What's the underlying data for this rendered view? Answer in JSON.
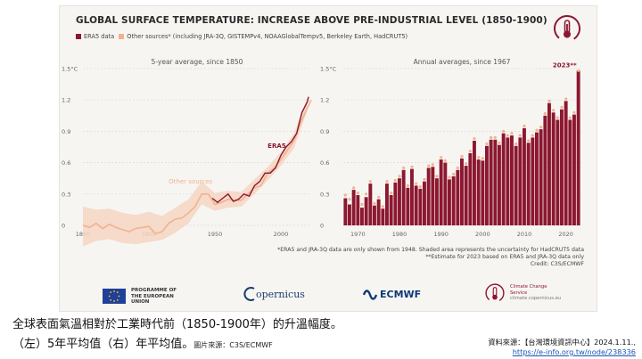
{
  "infographic": {
    "title": "GLOBAL SURFACE TEMPERATURE: INCREASE ABOVE PRE-INDUSTRIAL LEVEL (1850-1900)",
    "legend": [
      {
        "label": "ERA5 data",
        "color": "#8c1730"
      },
      {
        "label": "Other sources* (including JRA-3Q, GISTEMPv4, NOAAGlobalTempv5, Berkeley Earth, HadCRUT5)",
        "color": "#f0b38f"
      }
    ],
    "notes": [
      "*ERA5 and JRA-3Q data are only shown from 1948. Shaded area represents the uncertainty for HadCRUT5 data",
      "**Estimate for 2023 based on ERA5 and JRA-3Q data only",
      "Credit: C3S/ECMWF"
    ],
    "logos": {
      "eu": "PROGRAMME OF THE EUROPEAN UNION",
      "copernicus": "opernicus",
      "ecmwf": "ECMWF",
      "c3s": "Climate Change Service",
      "c3s_url": "climate.copernicus.eu"
    }
  },
  "caption": {
    "line1": "全球表面氣溫相對於工業時代前（1850-1900年）的升溫幅度。",
    "line2": "（左）5年平均值（右）年平均值。",
    "image_credit": "圖片來源：C3S/ECMWF",
    "source_label": "資料來源：【台灣環境資訊中心】2024.1.11.,",
    "source_url": "https://e-info.org.tw/node/238336"
  },
  "colors": {
    "era5": "#8c1730",
    "other": "#f0b38f",
    "band": "#f6d5c3",
    "grid": "#dedad5"
  },
  "chart_data": [
    {
      "type": "line",
      "title": "5-year average, since 1850",
      "ylabel": "°C",
      "xlim": [
        1850,
        2023
      ],
      "ylim": [
        0,
        1.5
      ],
      "yticks": [
        0,
        0.3,
        0.6,
        0.9,
        1.2,
        1.5
      ],
      "ytick_labels": [
        "0",
        "0.3",
        "0.6",
        "0.9",
        "1.2",
        "1.5°C"
      ],
      "xticks": [
        1850,
        1900,
        1950,
        2000
      ],
      "annotations": [
        "ERA5",
        "Other sources"
      ],
      "uncertainty_band_years": [
        1850,
        1860,
        1870,
        1880,
        1890,
        1900,
        1910,
        1920,
        1930,
        1940,
        1950,
        1960,
        1970,
        1980,
        1990,
        2000,
        2010,
        2020
      ],
      "uncertainty_band_lower": [
        -0.2,
        -0.15,
        -0.13,
        -0.17,
        -0.18,
        -0.16,
        -0.14,
        -0.07,
        0.02,
        0.2,
        0.14,
        0.17,
        0.18,
        0.3,
        0.43,
        0.57,
        0.74,
        1.1
      ],
      "uncertainty_band_upper": [
        0.18,
        0.15,
        0.16,
        0.12,
        0.1,
        0.13,
        0.09,
        0.17,
        0.25,
        0.42,
        0.31,
        0.33,
        0.32,
        0.44,
        0.56,
        0.7,
        0.88,
        1.22
      ],
      "series": [
        {
          "name": "Other sources",
          "x": [
            1850,
            1855,
            1860,
            1865,
            1870,
            1875,
            1880,
            1885,
            1890,
            1895,
            1900,
            1905,
            1910,
            1915,
            1920,
            1925,
            1930,
            1935,
            1940,
            1945,
            1950,
            1955,
            1960,
            1965,
            1970,
            1975,
            1980,
            1985,
            1990,
            1995,
            2000,
            2005,
            2010,
            2015,
            2020,
            2023
          ],
          "y": [
            0.0,
            -0.02,
            0.02,
            -0.03,
            0.01,
            -0.02,
            -0.04,
            -0.06,
            -0.03,
            -0.02,
            -0.01,
            -0.08,
            -0.06,
            0.02,
            0.06,
            0.07,
            0.12,
            0.18,
            0.3,
            0.3,
            0.2,
            0.22,
            0.25,
            0.24,
            0.24,
            0.3,
            0.36,
            0.38,
            0.5,
            0.55,
            0.63,
            0.72,
            0.81,
            0.98,
            1.12,
            1.2
          ]
        },
        {
          "name": "ERA5",
          "x": [
            1948,
            1952,
            1956,
            1960,
            1964,
            1968,
            1972,
            1976,
            1980,
            1984,
            1988,
            1992,
            1996,
            2000,
            2004,
            2008,
            2012,
            2016,
            2020,
            2021
          ],
          "y": [
            0.26,
            0.22,
            0.26,
            0.3,
            0.23,
            0.25,
            0.3,
            0.28,
            0.38,
            0.42,
            0.5,
            0.5,
            0.55,
            0.67,
            0.75,
            0.8,
            0.88,
            1.08,
            1.18,
            1.23
          ]
        }
      ]
    },
    {
      "type": "bar",
      "title": "Annual averages, since 1967",
      "ylabel": "°C",
      "ylim": [
        0,
        1.5
      ],
      "yticks": [
        0,
        0.3,
        0.6,
        0.9,
        1.2,
        1.5
      ],
      "ytick_labels": [
        "0",
        "0.3",
        "0.6",
        "0.9",
        "1.2",
        "1.5°C"
      ],
      "xticks": [
        1970,
        1980,
        1990,
        2000,
        2010,
        2020
      ],
      "annotations": [
        "2023**"
      ],
      "categories": [
        1967,
        1968,
        1969,
        1970,
        1971,
        1972,
        1973,
        1974,
        1975,
        1976,
        1977,
        1978,
        1979,
        1980,
        1981,
        1982,
        1983,
        1984,
        1985,
        1986,
        1987,
        1988,
        1989,
        1990,
        1991,
        1992,
        1993,
        1994,
        1995,
        1996,
        1997,
        1998,
        1999,
        2000,
        2001,
        2002,
        2003,
        2004,
        2005,
        2006,
        2007,
        2008,
        2009,
        2010,
        2011,
        2012,
        2013,
        2014,
        2015,
        2016,
        2017,
        2018,
        2019,
        2020,
        2021,
        2022,
        2023
      ],
      "series": [
        {
          "name": "ERA5",
          "values": [
            0.26,
            0.2,
            0.34,
            0.29,
            0.17,
            0.27,
            0.4,
            0.19,
            0.25,
            0.16,
            0.4,
            0.29,
            0.41,
            0.45,
            0.53,
            0.36,
            0.54,
            0.38,
            0.35,
            0.42,
            0.55,
            0.56,
            0.45,
            0.63,
            0.6,
            0.44,
            0.47,
            0.53,
            0.64,
            0.57,
            0.69,
            0.81,
            0.63,
            0.62,
            0.76,
            0.82,
            0.82,
            0.77,
            0.88,
            0.84,
            0.86,
            0.76,
            0.84,
            0.93,
            0.79,
            0.84,
            0.89,
            0.92,
            1.05,
            1.17,
            1.08,
            1.01,
            1.11,
            1.19,
            1.01,
            1.06,
            1.48
          ]
        },
        {
          "name": "Other sources",
          "values": [
            0.29,
            0.25,
            0.36,
            0.31,
            0.2,
            0.3,
            0.42,
            0.21,
            0.27,
            0.18,
            0.42,
            0.31,
            0.43,
            0.47,
            0.55,
            0.38,
            0.56,
            0.4,
            0.37,
            0.44,
            0.57,
            0.58,
            0.47,
            0.65,
            0.62,
            0.46,
            0.49,
            0.55,
            0.66,
            0.59,
            0.71,
            0.83,
            0.65,
            0.64,
            0.78,
            0.84,
            0.84,
            0.79,
            0.9,
            0.86,
            0.88,
            0.78,
            0.86,
            0.95,
            0.81,
            0.86,
            0.91,
            0.94,
            1.07,
            1.19,
            1.1,
            1.03,
            1.13,
            1.21,
            1.03,
            1.08,
            1.48
          ]
        }
      ]
    }
  ]
}
